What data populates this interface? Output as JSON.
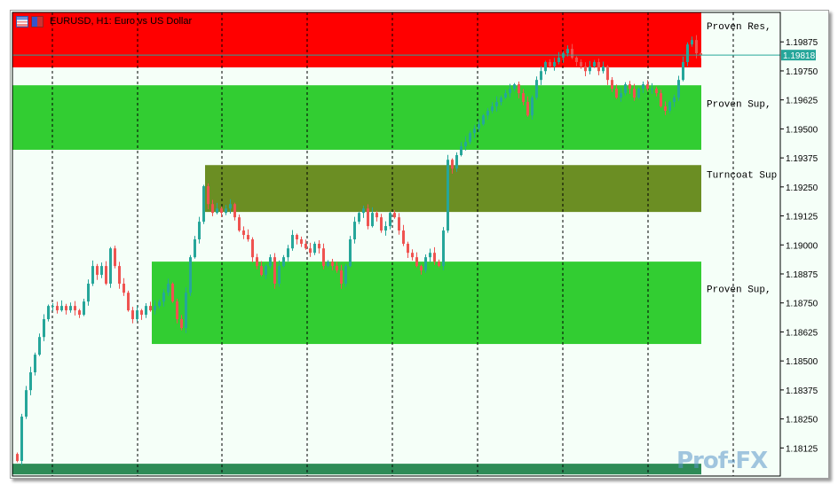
{
  "window": {
    "title": "EURUSD, H1:  Euro vs US Dollar",
    "watermark": "Prof-FX"
  },
  "colors": {
    "background": "#f5fff8",
    "resistance_zone": "#ff0000",
    "support_zone": "#32cd32",
    "turncoat_zone": "#6b8e23",
    "bottom_zone": "#2e8b57",
    "bull": "#26a69a",
    "bear": "#ef5350",
    "price_line": "#26a69a"
  },
  "chart_data": {
    "type": "candlestick",
    "symbol": "EURUSD",
    "timeframe": "H1",
    "ylim": [
      1.18004,
      1.20002
    ],
    "y_ticks": [
      "1.19875",
      "1.19750",
      "1.19625",
      "1.19500",
      "1.19375",
      "1.19250",
      "1.19125",
      "1.19000",
      "1.18875",
      "1.18750",
      "1.18625",
      "1.18500",
      "1.18375",
      "1.18250",
      "1.18125"
    ],
    "current_price": "1.19818",
    "grid": "vertical-dashed",
    "zones": [
      {
        "label": "Proven Res,",
        "type": "resistance",
        "from": 1.19765,
        "to": 1.20002,
        "start_index": 0
      },
      {
        "label": "Proven Sup,",
        "type": "support",
        "from": 1.1941,
        "to": 1.19688,
        "start_index": 0
      },
      {
        "label": "Turncoat Sup",
        "type": "turncoat",
        "from": 1.19142,
        "to": 1.19344,
        "start_index": 43
      },
      {
        "label": "Proven Sup,",
        "type": "support",
        "from": 1.18573,
        "to": 1.18928,
        "start_index": 31
      },
      {
        "label": "",
        "type": "bottom",
        "from": 1.18011,
        "to": 1.18057,
        "start_index": 0
      }
    ],
    "closes": [
      1.18069,
      1.1826,
      1.18374,
      1.18451,
      1.18527,
      1.18603,
      1.1868,
      1.18737,
      1.18737,
      1.18718,
      1.18737,
      1.18718,
      1.18737,
      1.18718,
      1.18699,
      1.18756,
      1.18833,
      1.18909,
      1.18871,
      1.18909,
      1.18833,
      1.18985,
      1.18909,
      1.18833,
      1.18794,
      1.18718,
      1.1868,
      1.18718,
      1.18699,
      1.18737,
      1.18718,
      1.18737,
      1.18756,
      1.18794,
      1.18833,
      1.18756,
      1.1868,
      1.18642,
      1.18794,
      1.18947,
      1.19024,
      1.191,
      1.19253,
      1.19176,
      1.19138,
      1.19157,
      1.19138,
      1.19157,
      1.19176,
      1.19119,
      1.19062,
      1.19043,
      1.19024,
      1.18947,
      1.18909,
      1.18871,
      1.18909,
      1.18947,
      1.18833,
      1.18909,
      1.18947,
      1.18985,
      1.19043,
      1.19024,
      1.19005,
      1.18985,
      1.18966,
      1.19005,
      1.18985,
      1.18909,
      1.18928,
      1.18909,
      1.1889,
      1.18833,
      1.18909,
      1.19024,
      1.191,
      1.19138,
      1.19157,
      1.19081,
      1.19138,
      1.19119,
      1.19062,
      1.19081,
      1.19138,
      1.19119,
      1.19062,
      1.19005,
      1.18966,
      1.18947,
      1.18909,
      1.1889,
      1.18947,
      1.18966,
      1.18928,
      1.18909,
      1.19062,
      1.19367,
      1.19329,
      1.19387,
      1.19425,
      1.19444,
      1.19482,
      1.19501,
      1.1952,
      1.19558,
      1.19578,
      1.19597,
      1.19616,
      1.19635,
      1.19654,
      1.19673,
      1.19692,
      1.19654,
      1.19616,
      1.19558,
      1.19635,
      1.19711,
      1.19749,
      1.19788,
      1.19769,
      1.19788,
      1.19807,
      1.19826,
      1.19845,
      1.19807,
      1.19788,
      1.19769,
      1.19749,
      1.19769,
      1.19788,
      1.19749,
      1.19769,
      1.19711,
      1.19673,
      1.19635,
      1.19654,
      1.19692,
      1.19673,
      1.19635,
      1.19673,
      1.19692,
      1.19673,
      1.19673,
      1.19654,
      1.19597,
      1.19578,
      1.19616,
      1.19635,
      1.19711,
      1.19788,
      1.19864,
      1.19883,
      1.19826,
      1.19818
    ]
  }
}
